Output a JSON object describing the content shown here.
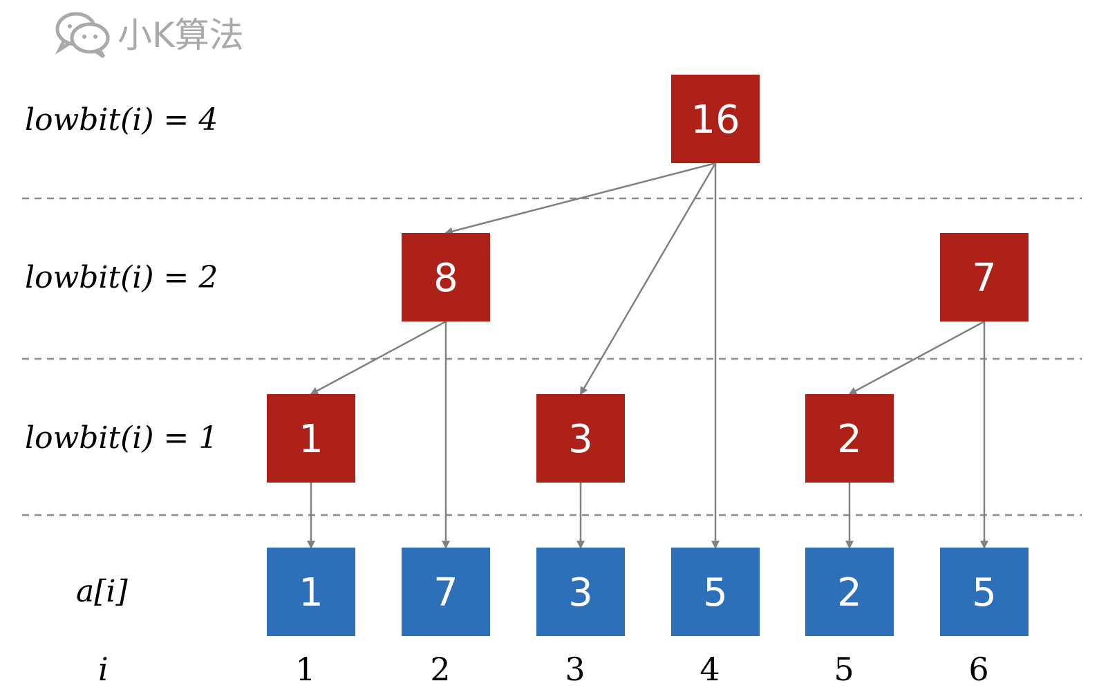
{
  "watermark": {
    "text": "小K算法",
    "icon": "wechat-icon"
  },
  "colors": {
    "tree_node": "#ae2119",
    "array_node": "#2e6fba",
    "edge": "#808080",
    "divider": "#8a8a8a"
  },
  "row_labels": {
    "lowbit4": "lowbit(i) = 4",
    "lowbit2": "lowbit(i) = 2",
    "lowbit1": "lowbit(i) = 1",
    "array": "a[i]",
    "index": "i"
  },
  "tree_nodes": [
    {
      "id": "t16",
      "value": "16",
      "level": 4,
      "index": 4
    },
    {
      "id": "t8",
      "value": "8",
      "level": 2,
      "index": 2
    },
    {
      "id": "t7",
      "value": "7",
      "level": 2,
      "index": 6
    },
    {
      "id": "t1",
      "value": "1",
      "level": 1,
      "index": 1
    },
    {
      "id": "t3",
      "value": "3",
      "level": 1,
      "index": 3
    },
    {
      "id": "t2",
      "value": "2",
      "level": 1,
      "index": 5
    }
  ],
  "array_nodes": [
    {
      "id": "a1",
      "value": "1",
      "index": 1
    },
    {
      "id": "a2",
      "value": "7",
      "index": 2
    },
    {
      "id": "a3",
      "value": "3",
      "index": 3
    },
    {
      "id": "a4",
      "value": "5",
      "index": 4
    },
    {
      "id": "a5",
      "value": "2",
      "index": 5
    },
    {
      "id": "a6",
      "value": "5",
      "index": 6
    }
  ],
  "indices": [
    "1",
    "2",
    "3",
    "4",
    "5",
    "6"
  ],
  "edges": [
    {
      "from": "t16",
      "to": "t8"
    },
    {
      "from": "t16",
      "to": "t3"
    },
    {
      "from": "t16",
      "to": "a4"
    },
    {
      "from": "t8",
      "to": "t1"
    },
    {
      "from": "t8",
      "to": "a2"
    },
    {
      "from": "t7",
      "to": "t2"
    },
    {
      "from": "t7",
      "to": "a6"
    },
    {
      "from": "t1",
      "to": "a1"
    },
    {
      "from": "t3",
      "to": "a3"
    },
    {
      "from": "t2",
      "to": "a5"
    }
  ]
}
